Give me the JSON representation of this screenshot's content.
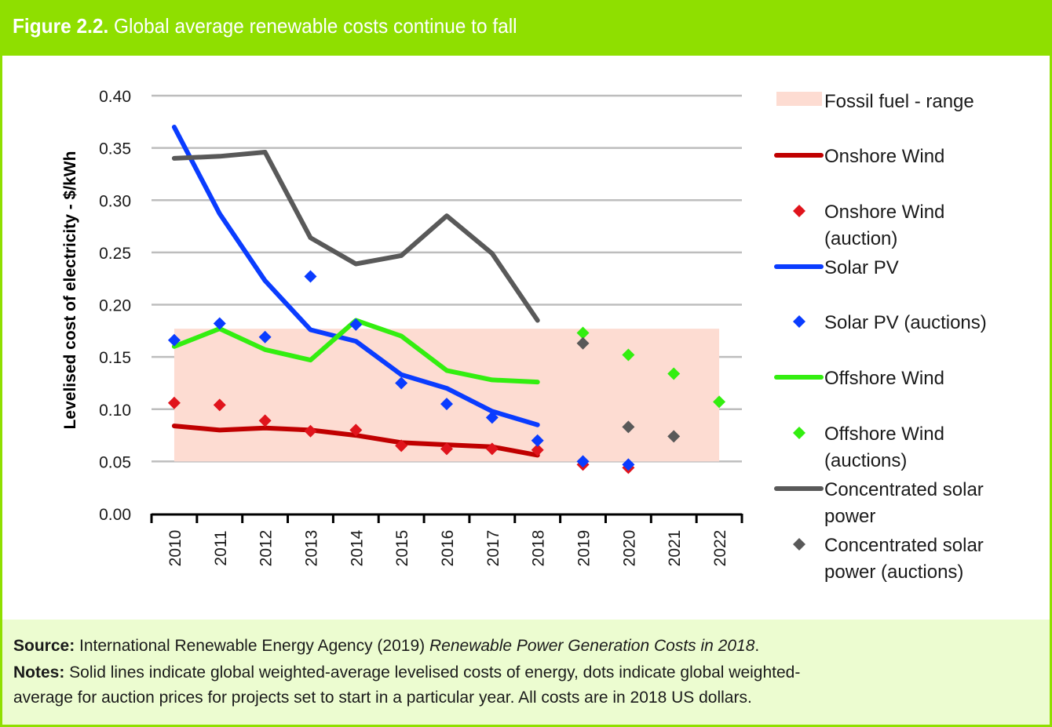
{
  "header": {
    "figure_label": "Figure 2.2.",
    "title": " Global average renewable costs continue to fall"
  },
  "notes": {
    "source_label": "Source:",
    "source_text": " International Renewable Energy Agency (2019) ",
    "source_italic": "Renewable Power Generation Costs in 2018",
    "source_end": ".",
    "notes_label": "Notes:",
    "notes_line1": " Solid lines indicate global weighted-average levelised costs of energy, dots indicate global weighted-",
    "notes_line2": "average for auction prices for projects set to start in a particular year. All costs are in 2018 US dollars."
  },
  "chart_data": {
    "type": "line",
    "title": "Global average renewable costs continue to fall",
    "xlabel": "",
    "ylabel": "Levelised cost of electricity - $/kWh",
    "ylim": [
      0,
      0.4
    ],
    "yticks": [
      "0.00",
      "0.05",
      "0.10",
      "0.15",
      "0.20",
      "0.25",
      "0.30",
      "0.35",
      "0.40"
    ],
    "grid": true,
    "legend_position": "right",
    "categories": [
      "2010",
      "2011",
      "2012",
      "2013",
      "2014",
      "2015",
      "2016",
      "2017",
      "2018",
      "2019",
      "2020",
      "2021",
      "2022"
    ],
    "fossil_range": {
      "name": "Fossil fuel - range",
      "low": 0.05,
      "high": 0.177,
      "color": "#fddcd2"
    },
    "series": [
      {
        "name": "Onshore Wind",
        "kind": "line",
        "color": "#c00000",
        "values": [
          0.084,
          0.08,
          0.082,
          0.08,
          0.075,
          0.068,
          0.066,
          0.064,
          0.056,
          null,
          null,
          null,
          null
        ]
      },
      {
        "name": "Onshore Wind (auction)",
        "kind": "marker",
        "color": "#e0141c",
        "values": [
          0.106,
          0.104,
          0.089,
          0.079,
          0.08,
          0.065,
          0.062,
          0.062,
          0.061,
          0.047,
          0.044,
          null,
          null
        ]
      },
      {
        "name": "Solar PV",
        "kind": "line",
        "color": "#0a3cff",
        "values": [
          0.37,
          0.287,
          0.223,
          0.176,
          0.165,
          0.133,
          0.12,
          0.098,
          0.085,
          null,
          null,
          null,
          null
        ]
      },
      {
        "name": "Solar PV (auctions)",
        "kind": "marker",
        "color": "#0a3cff",
        "values": [
          0.166,
          0.182,
          0.169,
          0.227,
          0.181,
          0.125,
          0.105,
          0.092,
          0.07,
          0.05,
          0.047,
          null,
          null
        ]
      },
      {
        "name": "Offshore Wind",
        "kind": "line",
        "color": "#33ee10",
        "values": [
          0.16,
          0.177,
          0.157,
          0.147,
          0.185,
          0.17,
          0.137,
          0.128,
          0.126,
          null,
          null,
          null,
          null
        ]
      },
      {
        "name": "Offshore Wind (auctions)",
        "kind": "marker",
        "color": "#33ee10",
        "values": [
          null,
          null,
          null,
          null,
          null,
          null,
          null,
          null,
          null,
          0.173,
          0.152,
          0.134,
          0.107
        ]
      },
      {
        "name": "Concentrated solar power",
        "kind": "line",
        "color": "#595959",
        "values": [
          0.34,
          0.342,
          0.346,
          0.264,
          0.239,
          0.247,
          0.285,
          0.249,
          0.185,
          null,
          null,
          null,
          null
        ]
      },
      {
        "name": "Concentrated solar power (auctions)",
        "kind": "marker",
        "color": "#595959",
        "values": [
          null,
          null,
          null,
          null,
          null,
          null,
          null,
          null,
          null,
          0.163,
          0.083,
          0.074,
          null
        ]
      }
    ],
    "legend": [
      {
        "kind": "band",
        "lines": [
          "Fossil fuel - range"
        ],
        "color": "#fddcd2"
      },
      {
        "kind": "line",
        "lines": [
          "Onshore Wind"
        ],
        "color": "#c00000"
      },
      {
        "kind": "marker",
        "lines": [
          "Onshore Wind",
          "(auction)"
        ],
        "color": "#e0141c"
      },
      {
        "kind": "line",
        "lines": [
          "Solar PV"
        ],
        "color": "#0a3cff"
      },
      {
        "kind": "marker",
        "lines": [
          "Solar PV (auctions)"
        ],
        "color": "#0a3cff"
      },
      {
        "kind": "line",
        "lines": [
          "Offshore Wind"
        ],
        "color": "#33ee10"
      },
      {
        "kind": "marker",
        "lines": [
          "Offshore Wind",
          "(auctions)"
        ],
        "color": "#33ee10"
      },
      {
        "kind": "line",
        "lines": [
          "Concentrated solar",
          "power"
        ],
        "color": "#595959"
      },
      {
        "kind": "marker",
        "lines": [
          "Concentrated solar",
          "power (auctions)"
        ],
        "color": "#595959"
      }
    ]
  }
}
